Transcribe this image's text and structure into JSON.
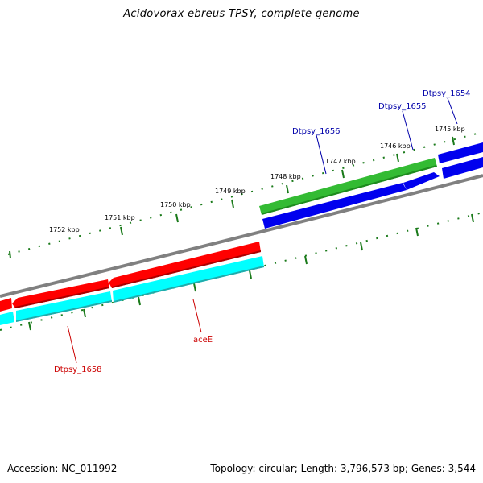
{
  "title": "Acidovorax ebreus TPSY, complete genome",
  "footer": {
    "accession": "Accession: NC_011992",
    "summary": "Topology: circular; Length: 3,796,573 bp; Genes: 3,544"
  },
  "kbp_labels": [
    "1745 kbp",
    "1746 kbp",
    "1747 kbp",
    "1748 kbp",
    "1749 kbp",
    "1750 kbp",
    "1751 kbp",
    "1752 kbp"
  ],
  "gene_labels": {
    "dtpsy_1654": "Dtpsy_1654",
    "dtpsy_1655": "Dtpsy_1655",
    "dtpsy_1656": "Dtpsy_1656",
    "acee": "aceE",
    "dtpsy_1658": "Dtpsy_1658"
  },
  "colors": {
    "forward_cds": "#0000ff",
    "forward_highlight": "#33bb33",
    "reverse_cds": "#ff0000",
    "reverse_cyan": "#00ffff",
    "backbone": "#808080",
    "tick": "#1a7a1a",
    "forward_label": "#0000aa",
    "reverse_label": "#cc0000"
  }
}
